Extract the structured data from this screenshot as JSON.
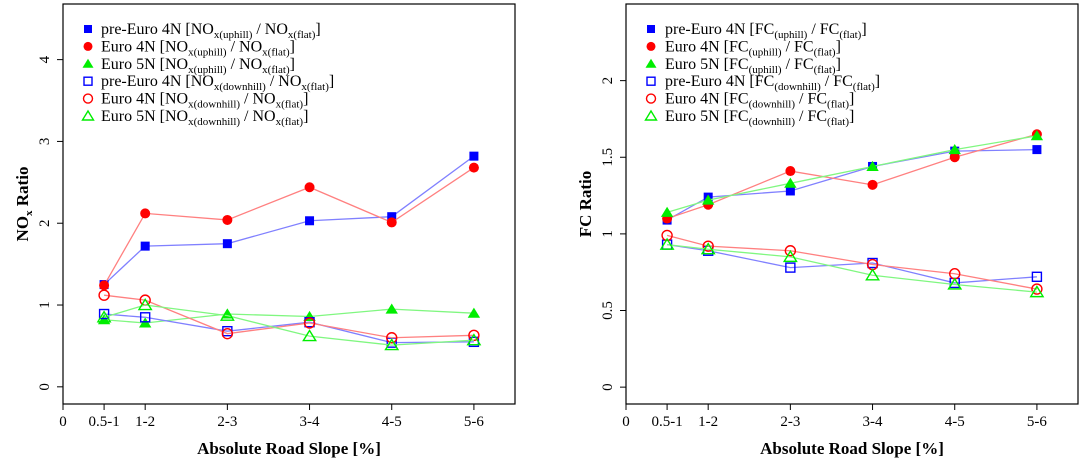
{
  "colors": {
    "pre_euro_4n": "#0000ff",
    "euro_4n": "#ff0000",
    "euro_5n": "#00ee00"
  },
  "chart_data": [
    {
      "type": "line",
      "title": "",
      "xlabel": "Absolute Road Slope [%]",
      "ylabel": {
        "main": "NO",
        "sub": "x",
        "rest": " Ratio"
      },
      "x_tick_labels": [
        "0",
        "0.5-1",
        "1-2",
        "2-3",
        "3-4",
        "4-5",
        "5-6"
      ],
      "x_tick_values": [
        0,
        0.5,
        1,
        2,
        3,
        4,
        5
      ],
      "x": [
        0.5,
        1,
        2,
        3,
        4,
        5
      ],
      "xlim": [
        0,
        5.5
      ],
      "y_tick_labels": [
        "0",
        "1",
        "2",
        "3",
        "4"
      ],
      "y_tick_values": [
        0,
        1,
        2,
        3,
        4
      ],
      "ylim": [
        -0.21,
        4.68
      ],
      "legend_position": "top-left",
      "series": [
        {
          "vehicle": "pre-Euro 4N",
          "num": "NO",
          "num_sub": "x(uphill)",
          "den": "NO",
          "den_sub": "x(flat)",
          "color_key": "pre_euro_4n",
          "marker": "square",
          "filled": true,
          "values": [
            1.25,
            1.72,
            1.75,
            2.03,
            2.08,
            2.82
          ]
        },
        {
          "vehicle": "Euro 4N",
          "num": "NO",
          "num_sub": "x(uphill)",
          "den": "NO",
          "den_sub": "x(flat)",
          "color_key": "euro_4n",
          "marker": "circle",
          "filled": true,
          "values": [
            1.24,
            2.12,
            2.04,
            2.44,
            2.01,
            2.68
          ]
        },
        {
          "vehicle": "Euro 5N",
          "num": "NO",
          "num_sub": "x(uphill)",
          "den": "NO",
          "den_sub": "x(flat)",
          "color_key": "euro_5n",
          "marker": "triangle",
          "filled": true,
          "values": [
            0.82,
            0.78,
            0.89,
            0.86,
            0.95,
            0.9
          ]
        },
        {
          "vehicle": "pre-Euro 4N",
          "num": "NO",
          "num_sub": "x(downhill)",
          "den": "NO",
          "den_sub": "x(flat)",
          "color_key": "pre_euro_4n",
          "marker": "square",
          "filled": false,
          "values": [
            0.89,
            0.85,
            0.68,
            0.79,
            0.54,
            0.55
          ]
        },
        {
          "vehicle": "Euro 4N",
          "num": "NO",
          "num_sub": "x(downhill)",
          "den": "NO",
          "den_sub": "x(flat)",
          "color_key": "euro_4n",
          "marker": "circle",
          "filled": false,
          "values": [
            1.12,
            1.06,
            0.65,
            0.78,
            0.6,
            0.63
          ]
        },
        {
          "vehicle": "Euro 5N",
          "num": "NO",
          "num_sub": "x(downhill)",
          "den": "NO",
          "den_sub": "x(flat)",
          "color_key": "euro_5n",
          "marker": "triangle",
          "filled": false,
          "values": [
            0.85,
            1.0,
            0.87,
            0.62,
            0.51,
            0.57
          ]
        }
      ]
    },
    {
      "type": "line",
      "title": "",
      "xlabel": "Absolute Road Slope [%]",
      "ylabel": {
        "main": "FC Ratio",
        "sub": "",
        "rest": ""
      },
      "x_tick_labels": [
        "0",
        "0.5-1",
        "1-2",
        "2-3",
        "3-4",
        "4-5",
        "5-6"
      ],
      "x_tick_values": [
        0,
        0.5,
        1,
        2,
        3,
        4,
        5
      ],
      "x": [
        0.5,
        1,
        2,
        3,
        4,
        5
      ],
      "xlim": [
        0,
        5.5
      ],
      "y_tick_labels": [
        "0",
        "0.5",
        "1",
        "1.5",
        "2"
      ],
      "y_tick_values": [
        0,
        0.5,
        1,
        1.5,
        2
      ],
      "ylim": [
        -0.11,
        2.5
      ],
      "legend_position": "top-left",
      "series": [
        {
          "vehicle": "pre-Euro 4N",
          "num": "FC",
          "num_sub": "(uphill)",
          "den": "FC",
          "den_sub": "(flat)",
          "color_key": "pre_euro_4n",
          "marker": "square",
          "filled": true,
          "values": [
            1.09,
            1.24,
            1.28,
            1.44,
            1.54,
            1.55
          ]
        },
        {
          "vehicle": "Euro 4N",
          "num": "FC",
          "num_sub": "(uphill)",
          "den": "FC",
          "den_sub": "(flat)",
          "color_key": "euro_4n",
          "marker": "circle",
          "filled": true,
          "values": [
            1.1,
            1.19,
            1.41,
            1.32,
            1.5,
            1.65
          ]
        },
        {
          "vehicle": "Euro 5N",
          "num": "FC",
          "num_sub": "(uphill)",
          "den": "FC",
          "den_sub": "(flat)",
          "color_key": "euro_5n",
          "marker": "triangle",
          "filled": true,
          "values": [
            1.14,
            1.22,
            1.33,
            1.44,
            1.55,
            1.64
          ]
        },
        {
          "vehicle": "pre-Euro 4N",
          "num": "FC",
          "num_sub": "(downhill)",
          "den": "FC",
          "den_sub": "(flat)",
          "color_key": "pre_euro_4n",
          "marker": "square",
          "filled": false,
          "values": [
            0.93,
            0.89,
            0.78,
            0.81,
            0.68,
            0.72
          ]
        },
        {
          "vehicle": "Euro 4N",
          "num": "FC",
          "num_sub": "(downhill)",
          "den": "FC",
          "den_sub": "(flat)",
          "color_key": "euro_4n",
          "marker": "circle",
          "filled": false,
          "values": [
            0.99,
            0.92,
            0.89,
            0.8,
            0.74,
            0.64
          ]
        },
        {
          "vehicle": "Euro 5N",
          "num": "FC",
          "num_sub": "(downhill)",
          "den": "FC",
          "den_sub": "(flat)",
          "color_key": "euro_5n",
          "marker": "triangle",
          "filled": false,
          "values": [
            0.93,
            0.9,
            0.85,
            0.73,
            0.67,
            0.62
          ]
        }
      ]
    }
  ]
}
